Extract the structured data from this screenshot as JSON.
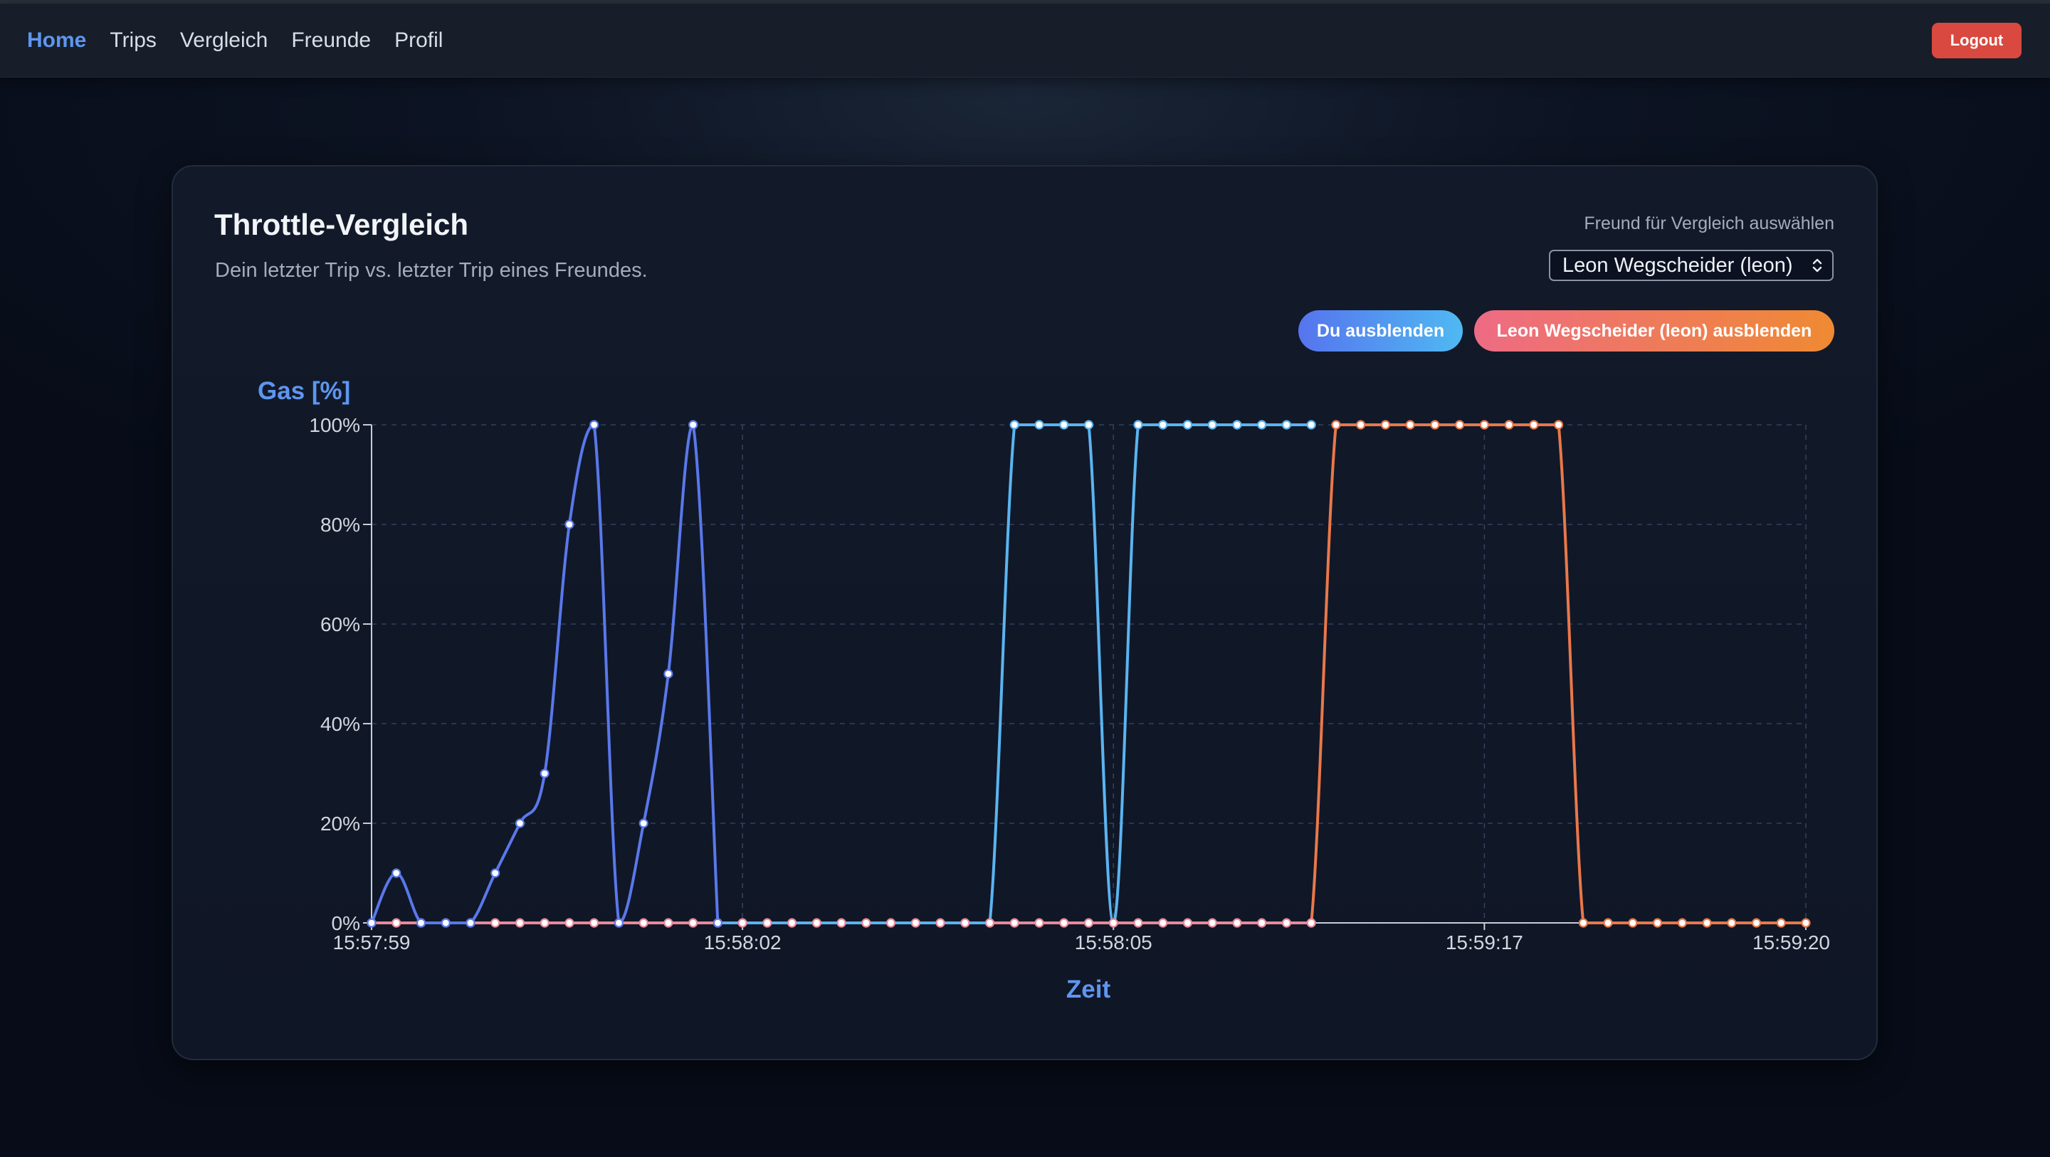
{
  "nav": {
    "links": [
      {
        "label": "Home",
        "active": true
      },
      {
        "label": "Trips",
        "active": false
      },
      {
        "label": "Vergleich",
        "active": false
      },
      {
        "label": "Freunde",
        "active": false
      },
      {
        "label": "Profil",
        "active": false
      }
    ],
    "logout_label": "Logout"
  },
  "card": {
    "title": "Throttle-Vergleich",
    "subtitle": "Dein letzter Trip vs. letzter Trip eines Freundes.",
    "select_label": "Freund für Vergleich auswählen",
    "selected_friend": "Leon Wegscheider (leon)",
    "toggle_me_label": "Du ausblenden",
    "toggle_friend_label": "Leon Wegscheider (leon) ausblenden"
  },
  "colors": {
    "accent": "#5e96f0",
    "logout": "#d9493f",
    "series_me_early": "#5a78ea",
    "series_me_late": "#5bb4f0",
    "series_friend": "#e9784a",
    "series_friend_zero": "#e98a9c"
  },
  "icons": {
    "select": "chevron-up-down-icon"
  },
  "chart_data": {
    "type": "line",
    "ylabel": "Gas [%]",
    "xlabel": "Zeit",
    "ylim": [
      0,
      100
    ],
    "yticks": [
      "0%",
      "20%",
      "40%",
      "60%",
      "80%",
      "100%"
    ],
    "xticks": [
      "15:57:59",
      "15:58:02",
      "15:58:05",
      "15:59:17",
      "15:59:20"
    ],
    "grid": true,
    "point_count": 59,
    "series": [
      {
        "values": [
          0,
          10,
          0,
          0,
          0,
          10,
          20,
          30,
          80,
          100,
          0,
          20,
          50,
          100,
          0,
          0,
          0,
          0,
          0,
          0,
          0,
          0,
          0,
          0,
          0,
          0,
          100,
          100,
          100,
          100,
          0,
          100,
          100,
          100,
          100,
          100,
          100,
          100,
          100,
          null,
          null,
          null,
          null,
          null,
          null,
          null,
          null,
          null,
          null,
          null,
          null,
          null,
          null,
          null,
          null,
          null,
          null,
          null,
          null
        ],
        "early_count": 15
      },
      {
        "values": [
          0,
          0,
          0,
          0,
          0,
          0,
          0,
          0,
          0,
          0,
          0,
          0,
          0,
          0,
          0,
          0,
          0,
          0,
          0,
          0,
          0,
          0,
          0,
          0,
          0,
          0,
          0,
          0,
          0,
          0,
          0,
          0,
          0,
          0,
          0,
          0,
          0,
          0,
          0,
          100,
          100,
          100,
          100,
          100,
          100,
          100,
          100,
          100,
          100,
          0,
          0,
          0,
          0,
          0,
          0,
          0,
          0,
          0,
          0
        ]
      }
    ]
  }
}
